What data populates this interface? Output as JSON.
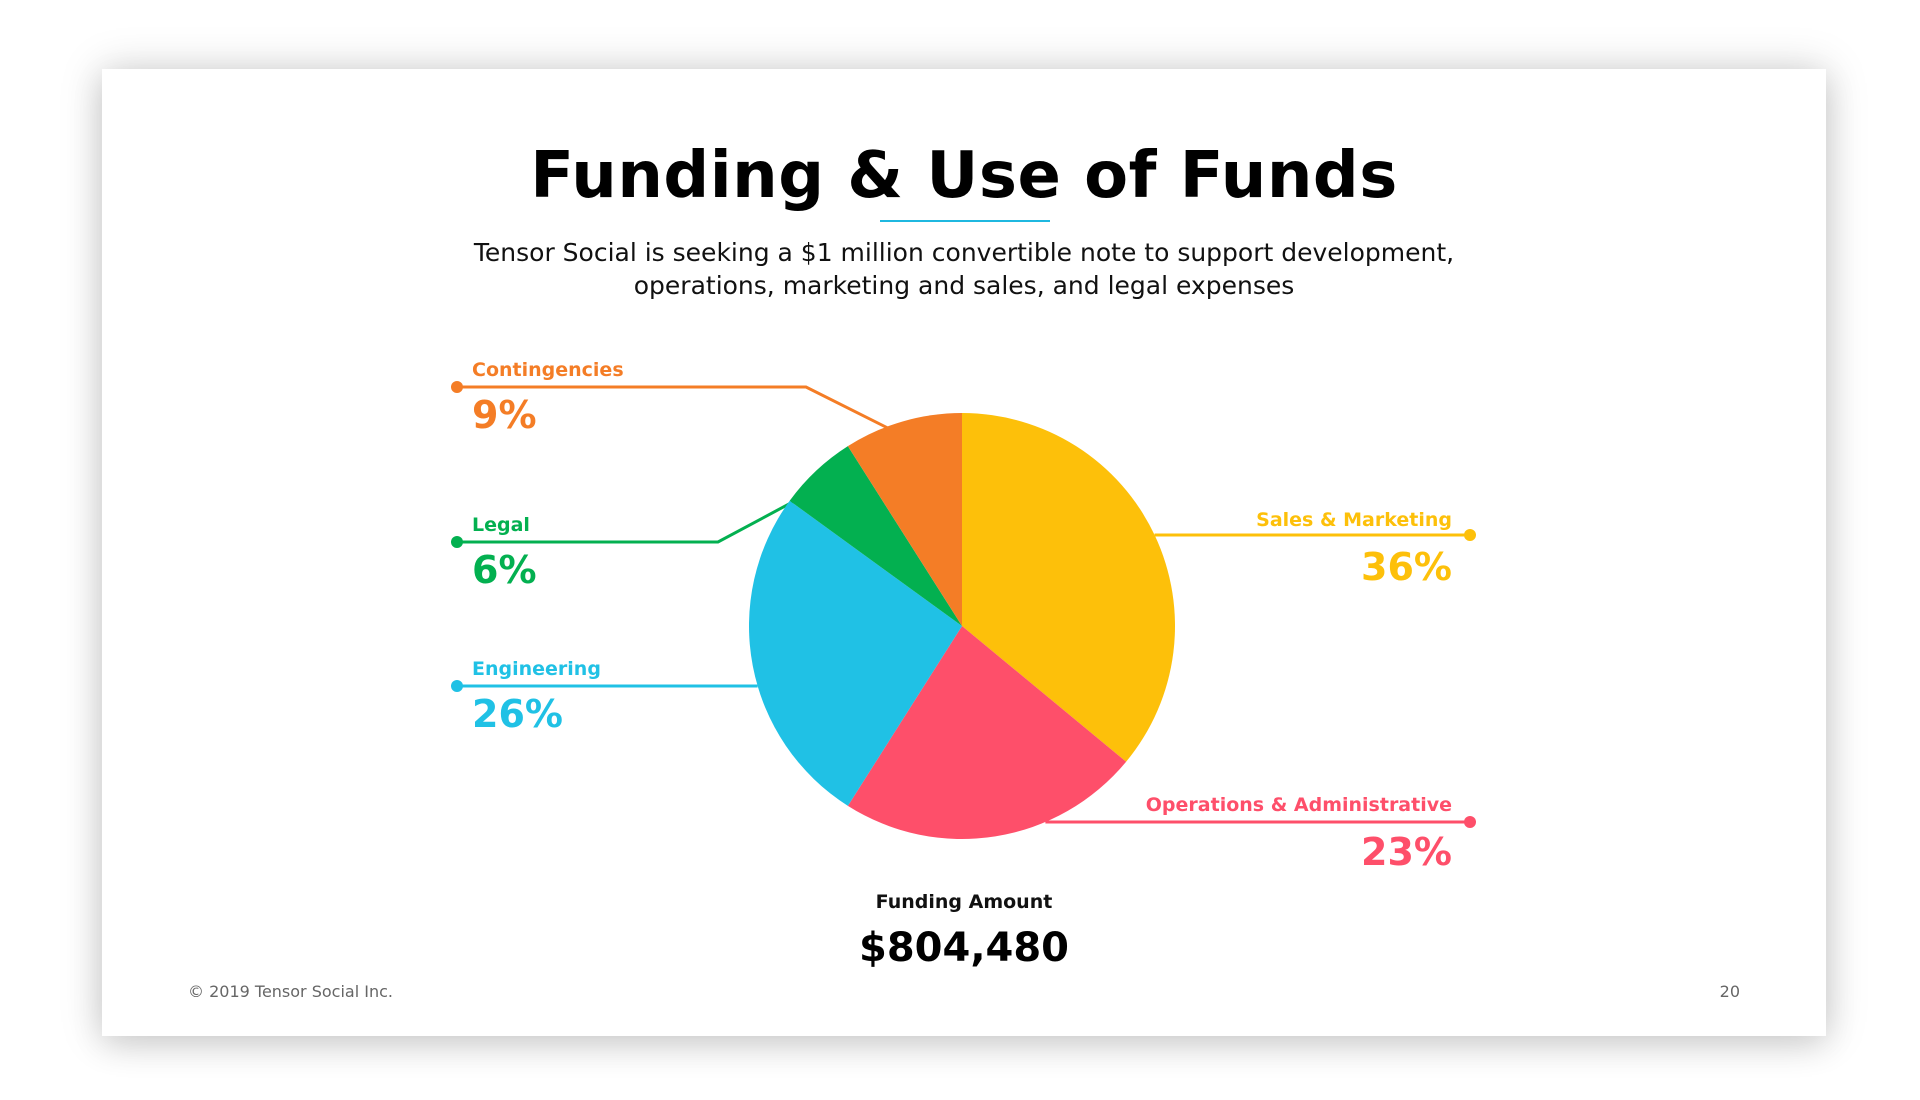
{
  "slide": {
    "title": "Funding & Use of Funds",
    "subtitle_line1": "Tensor Social is seeking a $1 million convertible note to support development,",
    "subtitle_line2": "operations, marketing and sales, and legal expenses",
    "funding_label": "Funding Amount",
    "funding_value": "$804,480",
    "footer_copyright": "© 2019 Tensor Social Inc.",
    "page_number": "20"
  },
  "chart_data": {
    "type": "pie",
    "title": "",
    "slices": [
      {
        "label": "Sales & Marketing",
        "value": 36,
        "display": "36%",
        "color": "#fdc00a"
      },
      {
        "label": "Operations & Administrative",
        "value": 23,
        "display": "23%",
        "color": "#fe4f6a"
      },
      {
        "label": "Engineering",
        "value": 26,
        "display": "26%",
        "color": "#20c1e5"
      },
      {
        "label": "Legal",
        "value": 6,
        "display": "6%",
        "color": "#03b050"
      },
      {
        "label": "Contingencies",
        "value": 9,
        "display": "9%",
        "color": "#f47d26"
      }
    ],
    "start_angle_deg": 0,
    "direction": "clockwise",
    "legend": "callout-labels"
  }
}
